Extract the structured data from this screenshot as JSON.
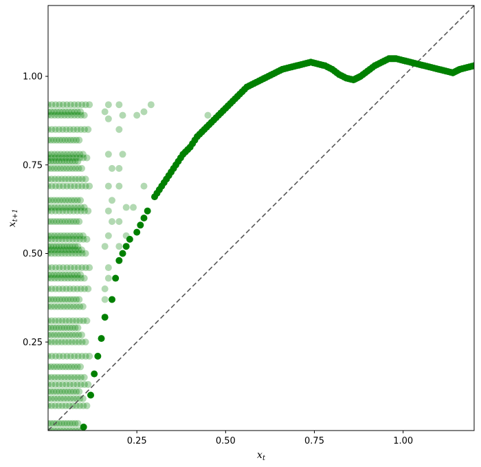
{
  "chart_data": {
    "type": "scatter",
    "xlabel": "x_t",
    "ylabel": "x_{t+1}",
    "xlim": [
      0.0,
      1.2
    ],
    "ylim": [
      0.0,
      1.2
    ],
    "x_ticks": [
      "0.25",
      "0.50",
      "0.75",
      "1.00"
    ],
    "y_ticks": [
      "0.25",
      "0.50",
      "0.75",
      "1.00"
    ],
    "grid": false,
    "legend": "none",
    "colors": {
      "map_points": "#008000",
      "background_points": "#008000",
      "identity_line": "#555555"
    },
    "identity_line": {
      "x": [
        0.0,
        1.2
      ],
      "y": [
        0.0,
        1.2
      ],
      "style": "dashed"
    },
    "series": [
      {
        "role": "background",
        "alpha": 0.3,
        "x_range": [
          0.0,
          0.12
        ],
        "y_levels": [
          0.0,
          0.02,
          0.07,
          0.09,
          0.11,
          0.13,
          0.15,
          0.18,
          0.21,
          0.25,
          0.27,
          0.29,
          0.31,
          0.35,
          0.37,
          0.4,
          0.43,
          0.44,
          0.46,
          0.5,
          0.51,
          0.52,
          0.54,
          0.55,
          0.59,
          0.62,
          0.63,
          0.65,
          0.69,
          0.71,
          0.74,
          0.76,
          0.77,
          0.78,
          0.82,
          0.85,
          0.89,
          0.9,
          0.92
        ],
        "extra_points": [
          [
            0.45,
            0.89
          ],
          [
            0.29,
            0.92
          ],
          [
            0.27,
            0.9
          ],
          [
            0.21,
            0.89
          ],
          [
            0.25,
            0.89
          ],
          [
            0.21,
            0.78
          ],
          [
            0.2,
            0.74
          ],
          [
            0.2,
            0.69
          ],
          [
            0.27,
            0.69
          ],
          [
            0.24,
            0.63
          ],
          [
            0.22,
            0.63
          ],
          [
            0.2,
            0.59
          ],
          [
            0.22,
            0.55
          ],
          [
            0.2,
            0.52
          ],
          [
            0.21,
            0.5
          ],
          [
            0.17,
            0.78
          ],
          [
            0.18,
            0.74
          ],
          [
            0.17,
            0.69
          ],
          [
            0.18,
            0.65
          ],
          [
            0.17,
            0.62
          ],
          [
            0.18,
            0.59
          ],
          [
            0.17,
            0.55
          ],
          [
            0.16,
            0.52
          ],
          [
            0.17,
            0.46
          ],
          [
            0.17,
            0.43
          ],
          [
            0.16,
            0.4
          ],
          [
            0.16,
            0.37
          ],
          [
            0.17,
            0.88
          ],
          [
            0.17,
            0.92
          ],
          [
            0.2,
            0.92
          ],
          [
            0.2,
            0.85
          ],
          [
            0.16,
            0.9
          ]
        ]
      },
      {
        "role": "map",
        "alpha": 1.0,
        "x": [
          0.1,
          0.12,
          0.13,
          0.14,
          0.15,
          0.16,
          0.18,
          0.19,
          0.2,
          0.21,
          0.22,
          0.23,
          0.25,
          0.26,
          0.27,
          0.28,
          0.3,
          0.32,
          0.34,
          0.36,
          0.38,
          0.4,
          0.42,
          0.44,
          0.46,
          0.48,
          0.5,
          0.52,
          0.54,
          0.56,
          0.58,
          0.6,
          0.62,
          0.64,
          0.66,
          0.68,
          0.7,
          0.72,
          0.74,
          0.76,
          0.78,
          0.8,
          0.82,
          0.84,
          0.86,
          0.87,
          0.88,
          0.9,
          0.92,
          0.94,
          0.96,
          0.97,
          0.98,
          1.0,
          1.02,
          1.04,
          1.06,
          1.08,
          1.1,
          1.12,
          1.14,
          1.15,
          1.16,
          1.18,
          1.2
        ],
        "y": [
          0.01,
          0.1,
          0.16,
          0.21,
          0.26,
          0.32,
          0.37,
          0.43,
          0.48,
          0.5,
          0.52,
          0.54,
          0.56,
          0.58,
          0.6,
          0.62,
          0.66,
          0.69,
          0.72,
          0.75,
          0.78,
          0.8,
          0.83,
          0.85,
          0.87,
          0.89,
          0.91,
          0.93,
          0.95,
          0.97,
          0.98,
          0.99,
          1.0,
          1.01,
          1.02,
          1.025,
          1.03,
          1.035,
          1.04,
          1.035,
          1.03,
          1.02,
          1.005,
          0.995,
          0.99,
          0.995,
          1.0,
          1.015,
          1.03,
          1.04,
          1.05,
          1.05,
          1.05,
          1.045,
          1.04,
          1.035,
          1.03,
          1.025,
          1.02,
          1.015,
          1.01,
          1.015,
          1.02,
          1.025,
          1.03
        ]
      }
    ]
  }
}
